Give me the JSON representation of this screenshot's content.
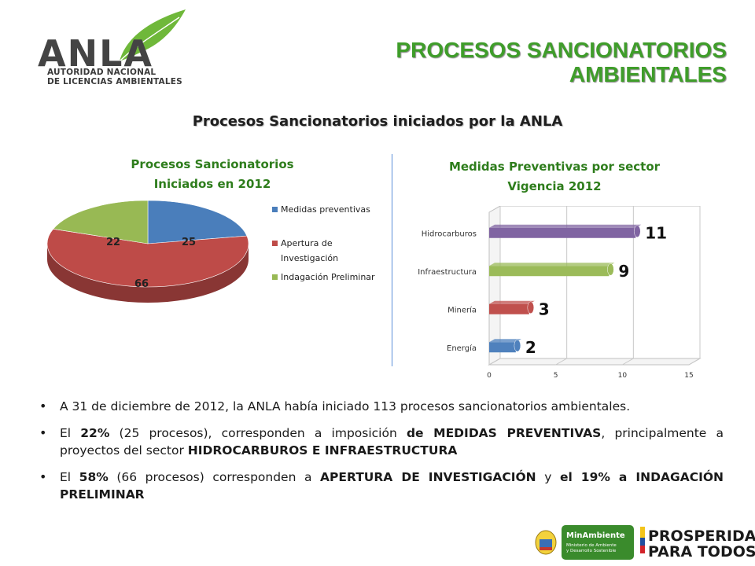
{
  "header": {
    "logo_text": "ANLA",
    "logo_sub_line1": "AUTORIDAD NACIONAL",
    "logo_sub_line2": "DE LICENCIAS AMBIENTALES",
    "title_line1": "PROCESOS SANCIONATORIOS",
    "title_line2": "AMBIENTALES"
  },
  "subtitle": "Procesos Sancionatorios iniciados por la ANLA",
  "pie_chart": {
    "title_line1": "Procesos Sancionatorios",
    "title_line2": "Iniciados en 2012",
    "legend": [
      "Medidas preventivas",
      "Apertura de",
      "Investigación",
      "Indagación Preliminar"
    ],
    "labels": [
      "25",
      "66",
      "22"
    ],
    "colors": [
      "#4a7ebb",
      "#be4b48",
      "#98b954"
    ]
  },
  "bar_chart": {
    "title_line1": "Medidas Preventivas por sector",
    "title_line2": "Vigencia 2012",
    "x_ticks": [
      "0",
      "5",
      "10",
      "15"
    ],
    "value_labels": [
      "11",
      "9",
      "3",
      "2"
    ],
    "colors": [
      "#8064a2",
      "#9bbb59",
      "#c0504d",
      "#4f81bd"
    ]
  },
  "chart_data": [
    {
      "type": "pie",
      "title": "Procesos Sancionatorios Iniciados en 2012",
      "categories": [
        "Medidas preventivas",
        "Apertura de Investigación",
        "Indagación Preliminar"
      ],
      "values": [
        25,
        66,
        22
      ],
      "legend": "right"
    },
    {
      "type": "bar",
      "orientation": "horizontal",
      "title": "Medidas Preventivas por sector Vigencia 2012",
      "categories": [
        "Hidrocarburos",
        "Infraestructura",
        "Minería",
        "Energía"
      ],
      "values": [
        11,
        9,
        3,
        2
      ],
      "xlim": [
        0,
        15
      ],
      "grid": true
    }
  ],
  "bullets": [
    {
      "segments": [
        {
          "t": "A 31 de diciembre de 2012, la ANLA había iniciado 113 procesos sancionatorios ambientales.",
          "b": false
        }
      ]
    },
    {
      "segments": [
        {
          "t": "El ",
          "b": false
        },
        {
          "t": "22%",
          "b": true
        },
        {
          "t": " (25 procesos), corresponden a imposición ",
          "b": false
        },
        {
          "t": "de MEDIDAS PREVENTIVAS",
          "b": true
        },
        {
          "t": ", principalmente a proyectos del sector ",
          "b": false
        },
        {
          "t": "HIDROCARBUROS E INFRAESTRUCTURA",
          "b": true
        }
      ]
    },
    {
      "segments": [
        {
          "t": "El ",
          "b": false
        },
        {
          "t": "58%",
          "b": true
        },
        {
          "t": " (66 procesos) corresponden a ",
          "b": false
        },
        {
          "t": "APERTURA DE INVESTIGACIÓN",
          "b": true
        },
        {
          "t": " y ",
          "b": false
        },
        {
          "t": "el 19% a INDAGACIÓN PRELIMINAR",
          "b": true
        }
      ]
    }
  ],
  "footer": {
    "ministry_name": "MinAmbiente",
    "ministry_sub1": "Ministerio de Ambiente",
    "ministry_sub2": "y Desarrollo Sostenible",
    "prosperidad_line1": "PROSPERIDAD",
    "prosperidad_line2": "PARA TODOS"
  }
}
